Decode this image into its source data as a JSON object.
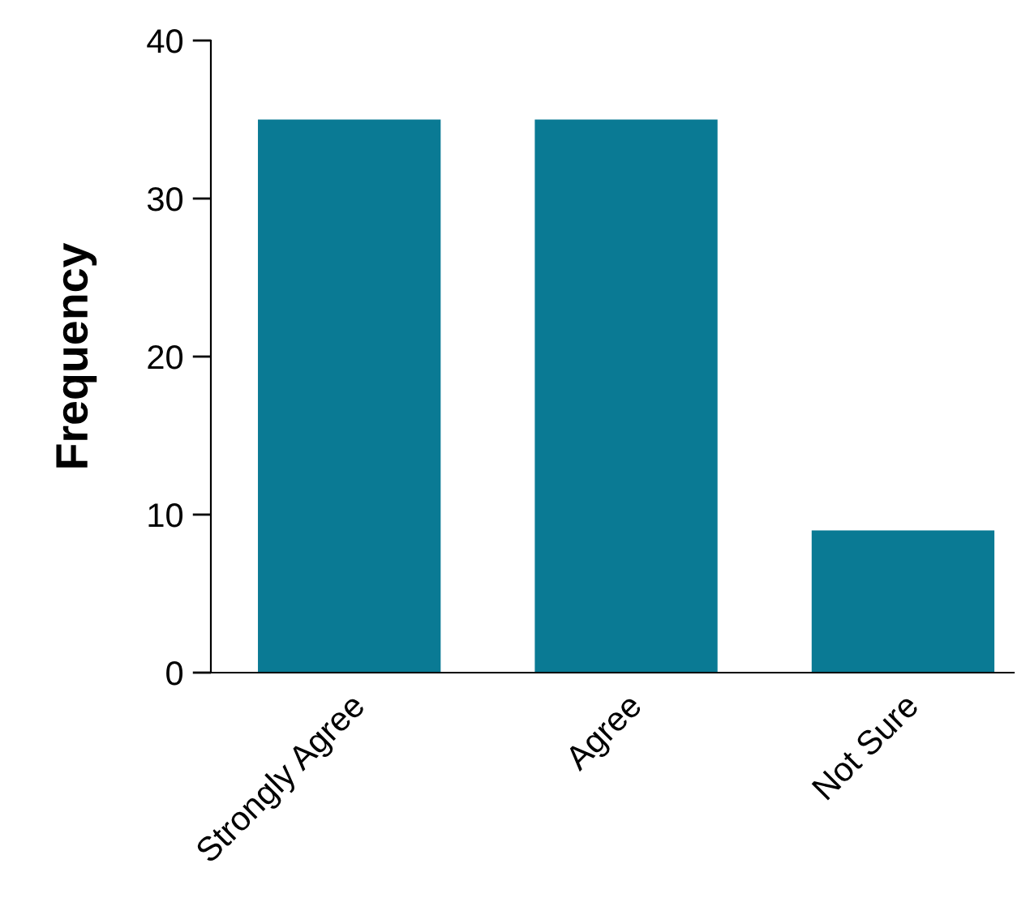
{
  "chart_data": {
    "type": "bar",
    "categories": [
      "Strongly Agree",
      "Agree",
      "Not Sure"
    ],
    "values": [
      35,
      35,
      9
    ],
    "color": "#0a7a94",
    "ylabel": "Frequency",
    "ylim": [
      0,
      40
    ],
    "yticks": [
      0,
      10,
      20,
      30,
      40
    ],
    "grid": false,
    "legend": false
  }
}
